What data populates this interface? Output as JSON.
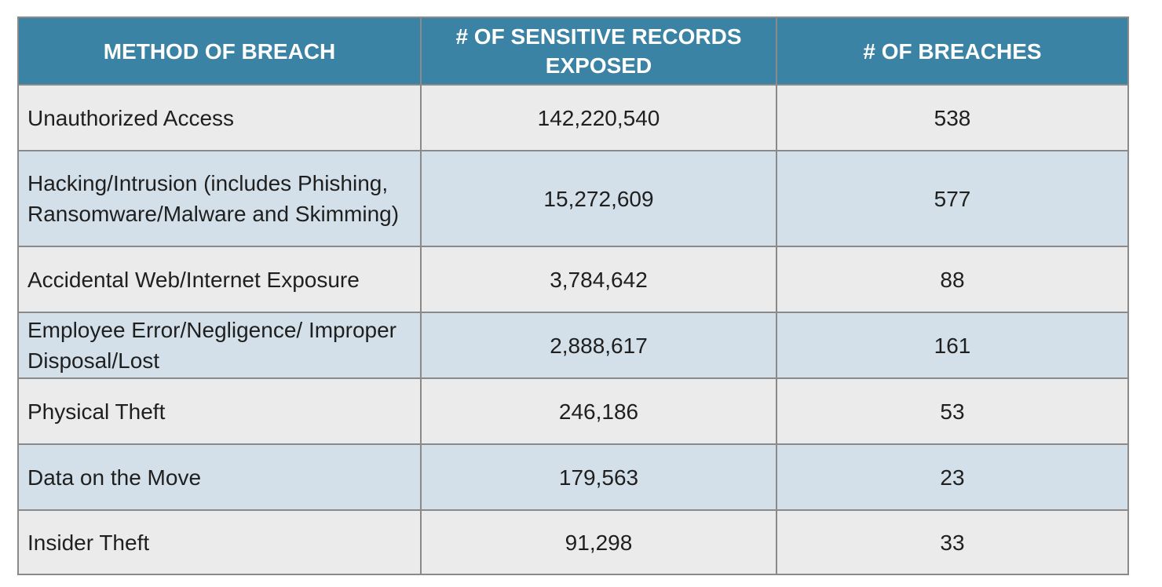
{
  "chart_data": {
    "type": "table",
    "columns": [
      "METHOD OF BREACH",
      "# OF SENSITIVE RECORDS EXPOSED",
      "# OF BREACHES"
    ],
    "rows": [
      [
        "Unauthorized Access",
        "142,220,540",
        "538"
      ],
      [
        "Hacking/Intrusion (includes Phishing, Ransomware/Malware and Skimming)",
        "15,272,609",
        "577"
      ],
      [
        "Accidental Web/Internet Exposure",
        "3,784,642",
        "88"
      ],
      [
        "Employee Error/Negligence/ Improper Disposal/Lost",
        "2,888,617",
        "161"
      ],
      [
        "Physical Theft",
        "246,186",
        "53"
      ],
      [
        "Data on the Move",
        "179,563",
        "23"
      ],
      [
        "Insider Theft",
        "91,298",
        "33"
      ]
    ],
    "colors": {
      "header_bg": "#3b83a5",
      "header_text": "#ffffff",
      "row_odd_bg": "#ebebeb",
      "row_even_bg": "#d3e0e9",
      "border": "#8a8a8a"
    }
  }
}
